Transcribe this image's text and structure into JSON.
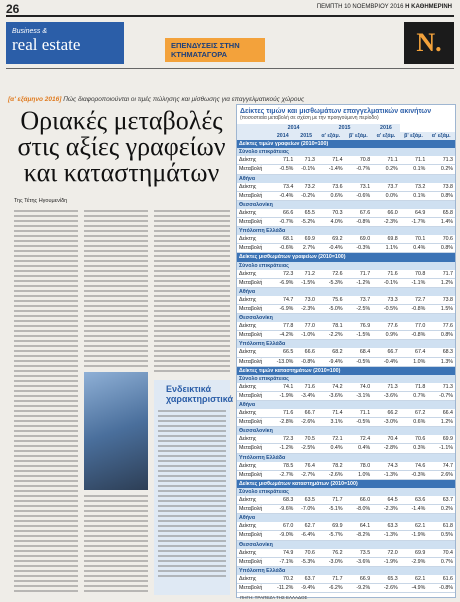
{
  "header": {
    "page": "26",
    "date": "ΠΕΜΠΤΗ 10 ΝΟΕΜΒΡΙΟΥ 2016",
    "paper": "Η ΚΑΘΗΜΕΡΙΝΗ"
  },
  "banner": {
    "brand_small": "Business &",
    "brand": "real estate",
    "section": "ΕΠΕΝΔΥΣΕΙΣ ΣΤΗΝ ΚΤΗΜΑΤΑΓΟΡΑ",
    "logo": "N."
  },
  "article": {
    "kicker_tag": "[α' εξάμηνο 2016]",
    "kicker": "Πώς διαφοροποιούνται οι τιμές πώλησης και μίσθωσης για επαγγελματικούς χώρους",
    "headline": "Οριακές μεταβολές στις αξίες γραφείων και καταστημάτων",
    "byline": "Της Τέτης Ηγουμενίδη",
    "box_title": "Ενδεικτικά χαρακτηριστικά"
  },
  "table": {
    "title": "Δείκτες τιμών και μισθωμάτων επαγγελματικών ακινήτων",
    "subtitle": "(ποσοστιαία μεταβολή σε σχέση με την προηγούμενη περίοδο)",
    "years": [
      "2014",
      "2015",
      "2016"
    ],
    "columns": [
      "2014",
      "2015",
      "α' εξάμ.",
      "β' εξάμ.",
      "α' εξάμ.",
      "β' εξάμ.",
      "α' εξάμ."
    ],
    "sections": [
      {
        "title": "Δείκτες τιμών γραφείων (2010=100)",
        "groups": [
          {
            "name": "Σύνολο επικράτειας",
            "rows": [
              {
                "label": "Δείκτης",
                "cells": [
                  "71.1",
                  "71.3",
                  "71.4",
                  "70.8",
                  "71.1",
                  "71.1",
                  "71.3"
                ]
              },
              {
                "label": "Μεταβολή",
                "cells": [
                  "-0.5%",
                  "-0.1%",
                  "-1.4%",
                  "-0.7%",
                  "0.2%",
                  "0.1%",
                  "0.2%"
                ]
              }
            ]
          },
          {
            "name": "Αθήνα",
            "rows": [
              {
                "label": "Δείκτης",
                "cells": [
                  "73.4",
                  "73.2",
                  "73.6",
                  "73.1",
                  "73.7",
                  "73.2",
                  "73.8"
                ]
              },
              {
                "label": "Μεταβολή",
                "cells": [
                  "-0.4%",
                  "-0.2%",
                  "0.6%",
                  "-0.6%",
                  "0.0%",
                  "0.1%",
                  "0.8%"
                ]
              }
            ]
          },
          {
            "name": "Θεσσαλονίκη",
            "rows": [
              {
                "label": "Δείκτης",
                "cells": [
                  "66.6",
                  "65.5",
                  "70.3",
                  "67.6",
                  "66.0",
                  "64.9",
                  "65.8"
                ]
              },
              {
                "label": "Μεταβολή",
                "cells": [
                  "-0.7%",
                  "-5.2%",
                  "4.0%",
                  "-0.8%",
                  "-2.3%",
                  "-1.7%",
                  "1.4%"
                ]
              }
            ]
          },
          {
            "name": "Υπόλοιπη Ελλάδα",
            "rows": [
              {
                "label": "Δείκτης",
                "cells": [
                  "68.1",
                  "69.9",
                  "69.2",
                  "69.0",
                  "69.8",
                  "70.1",
                  "70.6"
                ]
              },
              {
                "label": "Μεταβολή",
                "cells": [
                  "-0.6%",
                  "2.7%",
                  "-0.4%",
                  "-0.3%",
                  "1.1%",
                  "0.4%",
                  "0.8%"
                ]
              }
            ]
          }
        ]
      },
      {
        "title": "Δείκτες μισθωμάτων γραφείων (2010=100)",
        "groups": [
          {
            "name": "Σύνολο επικράτειας",
            "rows": [
              {
                "label": "Δείκτης",
                "cells": [
                  "72.3",
                  "71.2",
                  "72.6",
                  "71.7",
                  "71.6",
                  "70.8",
                  "71.7"
                ]
              },
              {
                "label": "Μεταβολή",
                "cells": [
                  "-6.9%",
                  "-1.5%",
                  "-5.3%",
                  "-1.2%",
                  "-0.1%",
                  "-1.1%",
                  "1.2%"
                ]
              }
            ]
          },
          {
            "name": "Αθήνα",
            "rows": [
              {
                "label": "Δείκτης",
                "cells": [
                  "74.7",
                  "73.0",
                  "75.6",
                  "73.7",
                  "73.3",
                  "72.7",
                  "73.8"
                ]
              },
              {
                "label": "Μεταβολή",
                "cells": [
                  "-6.9%",
                  "-2.3%",
                  "-5.0%",
                  "-2.5%",
                  "-0.5%",
                  "-0.8%",
                  "1.5%"
                ]
              }
            ]
          },
          {
            "name": "Θεσσαλονίκη",
            "rows": [
              {
                "label": "Δείκτης",
                "cells": [
                  "77.8",
                  "77.0",
                  "78.1",
                  "76.9",
                  "77.6",
                  "77.0",
                  "77.6"
                ]
              },
              {
                "label": "Μεταβολή",
                "cells": [
                  "-4.2%",
                  "-1.0%",
                  "-2.2%",
                  "-1.5%",
                  "0.9%",
                  "-0.8%",
                  "0.8%"
                ]
              }
            ]
          },
          {
            "name": "Υπόλοιπη Ελλάδα",
            "rows": [
              {
                "label": "Δείκτης",
                "cells": [
                  "66.5",
                  "66.6",
                  "68.2",
                  "68.4",
                  "66.7",
                  "67.4",
                  "68.3"
                ]
              },
              {
                "label": "Μεταβολή",
                "cells": [
                  "-13.0%",
                  "-0.8%",
                  "-9.4%",
                  "-0.5%",
                  "-0.4%",
                  "1.0%",
                  "1.3%"
                ]
              }
            ]
          }
        ]
      },
      {
        "title": "Δείκτες τιμών καταστημάτων (2010=100)",
        "groups": [
          {
            "name": "Σύνολο επικράτειας",
            "rows": [
              {
                "label": "Δείκτης",
                "cells": [
                  "74.1",
                  "71.6",
                  "74.2",
                  "74.0",
                  "71.3",
                  "71.8",
                  "71.3"
                ]
              },
              {
                "label": "Μεταβολή",
                "cells": [
                  "-1.9%",
                  "-3.4%",
                  "-3.6%",
                  "-3.1%",
                  "-3.6%",
                  "0.7%",
                  "-0.7%"
                ]
              }
            ]
          },
          {
            "name": "Αθήνα",
            "rows": [
              {
                "label": "Δείκτης",
                "cells": [
                  "71.6",
                  "66.7",
                  "71.4",
                  "71.1",
                  "66.2",
                  "67.2",
                  "66.4"
                ]
              },
              {
                "label": "Μεταβολή",
                "cells": [
                  "-2.8%",
                  "-2.6%",
                  "3.1%",
                  "-0.5%",
                  "-3.0%",
                  "0.6%",
                  "1.2%"
                ]
              }
            ]
          },
          {
            "name": "Θεσσαλονίκη",
            "rows": [
              {
                "label": "Δείκτης",
                "cells": [
                  "72.3",
                  "70.5",
                  "72.1",
                  "72.4",
                  "70.4",
                  "70.6",
                  "69.9"
                ]
              },
              {
                "label": "Μεταβολή",
                "cells": [
                  "-1.2%",
                  "-2.5%",
                  "0.4%",
                  "0.4%",
                  "-2.8%",
                  "0.3%",
                  "-1.1%"
                ]
              }
            ]
          },
          {
            "name": "Υπόλοιπη Ελλάδα",
            "rows": [
              {
                "label": "Δείκτης",
                "cells": [
                  "78.5",
                  "76.4",
                  "78.2",
                  "78.0",
                  "74.3",
                  "74.6",
                  "74.7"
                ]
              },
              {
                "label": "Μεταβολή",
                "cells": [
                  "-2.7%",
                  "-2.7%",
                  "-2.6%",
                  "1.0%",
                  "-1.3%",
                  "-0.3%",
                  "2.6%"
                ]
              }
            ]
          }
        ]
      },
      {
        "title": "Δείκτες μισθωμάτων καταστημάτων (2010=100)",
        "groups": [
          {
            "name": "Σύνολο επικράτειας",
            "rows": [
              {
                "label": "Δείκτης",
                "cells": [
                  "68.3",
                  "63.5",
                  "71.7",
                  "66.0",
                  "64.5",
                  "63.6",
                  "63.7"
                ]
              },
              {
                "label": "Μεταβολή",
                "cells": [
                  "-9.6%",
                  "-7.0%",
                  "-5.1%",
                  "-8.0%",
                  "-2.3%",
                  "-1.4%",
                  "0.2%"
                ]
              }
            ]
          },
          {
            "name": "Αθήνα",
            "rows": [
              {
                "label": "Δείκτης",
                "cells": [
                  "67.0",
                  "62.7",
                  "69.9",
                  "64.1",
                  "63.3",
                  "62.1",
                  "61.8"
                ]
              },
              {
                "label": "Μεταβολή",
                "cells": [
                  "-9.0%",
                  "-6.4%",
                  "-5.7%",
                  "-8.2%",
                  "-1.3%",
                  "-1.9%",
                  "0.5%"
                ]
              }
            ]
          },
          {
            "name": "Θεσσαλονίκη",
            "rows": [
              {
                "label": "Δείκτης",
                "cells": [
                  "74.9",
                  "70.6",
                  "76.2",
                  "73.5",
                  "72.0",
                  "69.9",
                  "70.4"
                ]
              },
              {
                "label": "Μεταβολή",
                "cells": [
                  "-7.1%",
                  "-5.3%",
                  "-3.0%",
                  "-3.6%",
                  "-1.9%",
                  "-2.9%",
                  "0.7%"
                ]
              }
            ]
          },
          {
            "name": "Υπόλοιπη Ελλάδα",
            "rows": [
              {
                "label": "Δείκτης",
                "cells": [
                  "70.2",
                  "63.7",
                  "71.7",
                  "66.9",
                  "65.3",
                  "62.1",
                  "61.6"
                ]
              },
              {
                "label": "Μεταβολή",
                "cells": [
                  "-11.2%",
                  "-9.4%",
                  "-6.2%",
                  "-9.2%",
                  "-2.6%",
                  "-4.9%",
                  "-0.8%"
                ]
              }
            ]
          }
        ]
      }
    ],
    "source": "ΠΗΓΗ: ΤΡΑΠΕΖΑ ΤΗΣ ΕΛΛΑΔΟΣ"
  }
}
